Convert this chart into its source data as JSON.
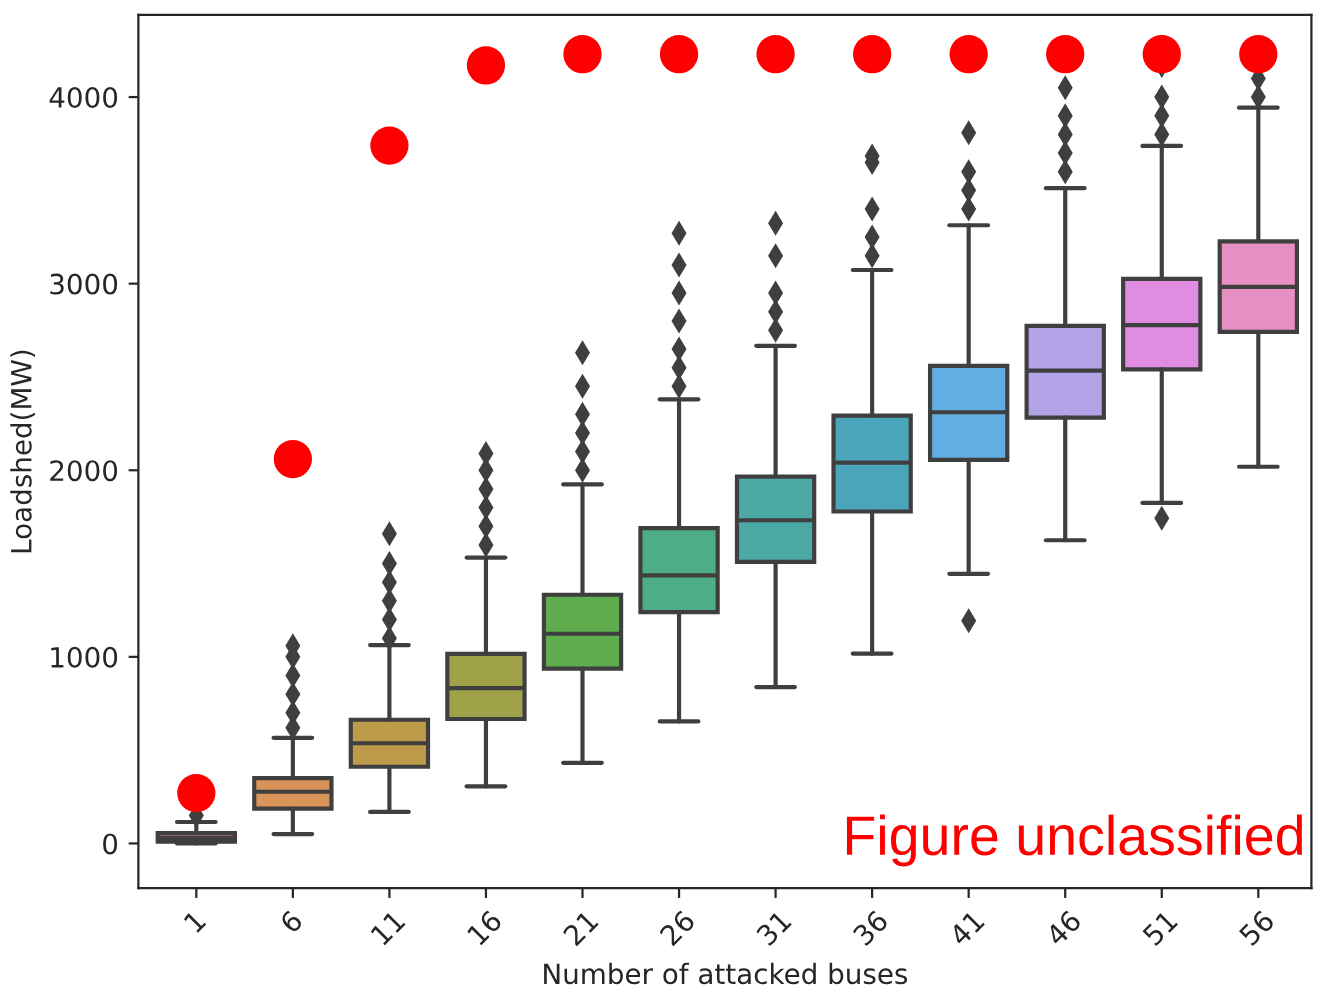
{
  "chart_data": {
    "type": "box",
    "xlabel": "Number of attacked buses",
    "ylabel": "Loadshed(MW)",
    "categories": [
      "1",
      "6",
      "11",
      "16",
      "21",
      "26",
      "31",
      "36",
      "41",
      "46",
      "51",
      "56"
    ],
    "colors": [
      "#d98b8e",
      "#d9945a",
      "#bd9b4a",
      "#a0a24a",
      "#5fad4f",
      "#4fae88",
      "#4ca9a3",
      "#4ca6bb",
      "#62aee2",
      "#b3a4e8",
      "#e08ce0",
      "#e68fc2"
    ],
    "boxes": [
      {
        "low": 0,
        "q1": 10,
        "median": 30,
        "q3": 55,
        "high": 115,
        "outliers": [
          150
        ]
      },
      {
        "low": 50,
        "q1": 187,
        "median": 277,
        "q3": 350,
        "high": 566,
        "outliers": [
          620,
          700,
          800,
          900,
          1000,
          1060
        ]
      },
      {
        "low": 169,
        "q1": 411,
        "median": 537,
        "q3": 663,
        "high": 1063,
        "outliers": [
          1100,
          1200,
          1300,
          1400,
          1500,
          1660
        ]
      },
      {
        "low": 306,
        "q1": 667,
        "median": 832,
        "q3": 1016,
        "high": 1532,
        "outliers": [
          1600,
          1700,
          1800,
          1900,
          2000,
          2090
        ]
      },
      {
        "low": 432,
        "q1": 937,
        "median": 1124,
        "q3": 1333,
        "high": 1924,
        "outliers": [
          2000,
          2100,
          2200,
          2300,
          2450,
          2630
        ]
      },
      {
        "low": 654,
        "q1": 1240,
        "median": 1437,
        "q3": 1690,
        "high": 2380,
        "outliers": [
          2450,
          2550,
          2650,
          2800,
          2950,
          3100,
          3270
        ]
      },
      {
        "low": 838,
        "q1": 1509,
        "median": 1732,
        "q3": 1966,
        "high": 2667,
        "outliers": [
          2750,
          2850,
          2950,
          3150,
          3324
        ]
      },
      {
        "low": 1017,
        "q1": 1779,
        "median": 2041,
        "q3": 2293,
        "high": 3073,
        "outliers": [
          3150,
          3250,
          3400,
          3650,
          3684
        ]
      },
      {
        "low": 1445,
        "q1": 2056,
        "median": 2311,
        "q3": 2559,
        "high": 3313,
        "outliers": [
          1193,
          3400,
          3500,
          3600,
          3809
        ]
      },
      {
        "low": 1625,
        "q1": 2282,
        "median": 2534,
        "q3": 2774,
        "high": 3512,
        "outliers": [
          3600,
          3700,
          3800,
          3900,
          4050
        ]
      },
      {
        "low": 1825,
        "q1": 2541,
        "median": 2778,
        "q3": 3026,
        "high": 3738,
        "outliers": [
          1743,
          3800,
          3900,
          4000,
          4169
        ]
      },
      {
        "low": 2019,
        "q1": 2742,
        "median": 2983,
        "q3": 3227,
        "high": 3943,
        "outliers": [
          4000,
          4100
        ]
      }
    ],
    "series": [
      {
        "type": "scatter",
        "color": "#ff0000",
        "x": [
          "1",
          "6",
          "11",
          "16",
          "21",
          "26",
          "31",
          "36",
          "41",
          "46",
          "51",
          "56"
        ],
        "values": [
          270,
          2060,
          3740,
          4170,
          4230,
          4230,
          4230,
          4230,
          4230,
          4230,
          4230,
          4230
        ]
      }
    ],
    "marker": "circle",
    "ylim": [
      -240,
      4440
    ],
    "yticks": [
      0,
      1000,
      2000,
      3000,
      4000
    ],
    "annotations": [
      "Figure unclassified"
    ]
  }
}
